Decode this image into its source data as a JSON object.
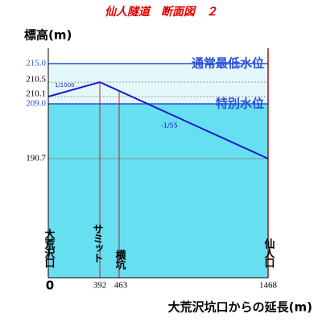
{
  "header": {
    "title": "仙人隧道　断面図　２"
  },
  "axes": {
    "y_label": "標高(m)",
    "x_label": "大荒沢坑口からの延長(m)"
  },
  "y_ticks": [
    "215.0",
    "210.5",
    "210.1",
    "209.0",
    "190.7"
  ],
  "x_ticks": [
    "0",
    "392",
    "463",
    "1468"
  ],
  "points": [
    "大荒沢口",
    "サミット",
    "横坑",
    "仙人口"
  ],
  "water_levels": [
    "通常最低水位",
    "特別水位"
  ],
  "gradients": [
    "1/1000",
    "-1/55"
  ]
}
